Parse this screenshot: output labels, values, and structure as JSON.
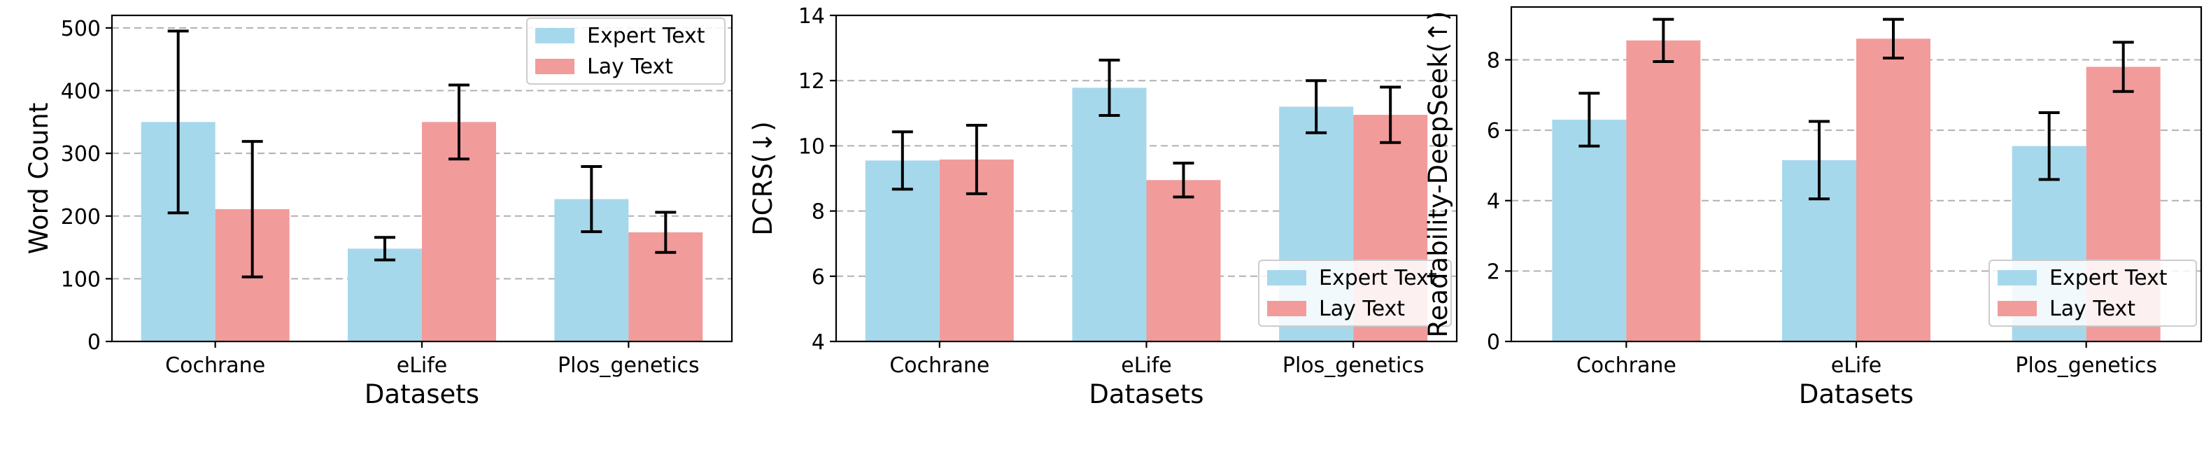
{
  "chart_data": [
    {
      "type": "bar",
      "categories": [
        "Cochrane",
        "eLife",
        "Plos_genetics"
      ],
      "series": [
        {
          "name": "Expert Text",
          "color": "#a6d8ec",
          "values": [
            350,
            148,
            227
          ],
          "errors": [
            145,
            18,
            52
          ]
        },
        {
          "name": "Lay Text",
          "color": "#f29b9b",
          "values": [
            211,
            350,
            174
          ],
          "errors": [
            108,
            59,
            32
          ]
        }
      ],
      "xlabel": "Datasets",
      "ylabel": "Word Count",
      "ylim": [
        0,
        520
      ],
      "yticks": [
        "0",
        "100",
        "200",
        "300",
        "400",
        "500"
      ],
      "grid": true,
      "legend": {
        "placement": "top-right",
        "entries": [
          "Expert Text",
          "Lay Text"
        ]
      }
    },
    {
      "type": "bar",
      "categories": [
        "Cochrane",
        "eLife",
        "Plos_genetics"
      ],
      "series": [
        {
          "name": "Expert Text",
          "color": "#a6d8ec",
          "values": [
            9.55,
            11.78,
            11.2
          ],
          "errors": [
            0.88,
            0.85,
            0.8
          ]
        },
        {
          "name": "Lay Text",
          "color": "#f29b9b",
          "values": [
            9.58,
            8.95,
            10.95
          ],
          "errors": [
            1.05,
            0.52,
            0.85
          ]
        }
      ],
      "xlabel": "Datasets",
      "ylabel": "DCRS(↓)",
      "ylim": [
        4,
        14
      ],
      "yticks": [
        "4",
        "6",
        "8",
        "10",
        "12",
        "14"
      ],
      "grid": true,
      "legend": {
        "placement": "bottom-right",
        "entries": [
          "Expert Text",
          "Lay Text"
        ]
      }
    },
    {
      "type": "bar",
      "categories": [
        "Cochrane",
        "eLife",
        "Plos_genetics"
      ],
      "series": [
        {
          "name": "Expert Text",
          "color": "#a6d8ec",
          "values": [
            6.3,
            5.15,
            5.55
          ],
          "errors": [
            0.75,
            1.1,
            0.95
          ]
        },
        {
          "name": "Lay Text",
          "color": "#f29b9b",
          "values": [
            8.55,
            8.6,
            7.8
          ],
          "errors": [
            0.6,
            0.55,
            0.7
          ]
        }
      ],
      "xlabel": "Datasets",
      "ylabel": "Readability-DeepSeek(↑)",
      "ylim": [
        0,
        9.5
      ],
      "yticks": [
        "0",
        "2",
        "4",
        "6",
        "8"
      ],
      "grid": true,
      "legend": {
        "placement": "bottom-right",
        "entries": [
          "Expert Text",
          "Lay Text"
        ]
      }
    }
  ]
}
